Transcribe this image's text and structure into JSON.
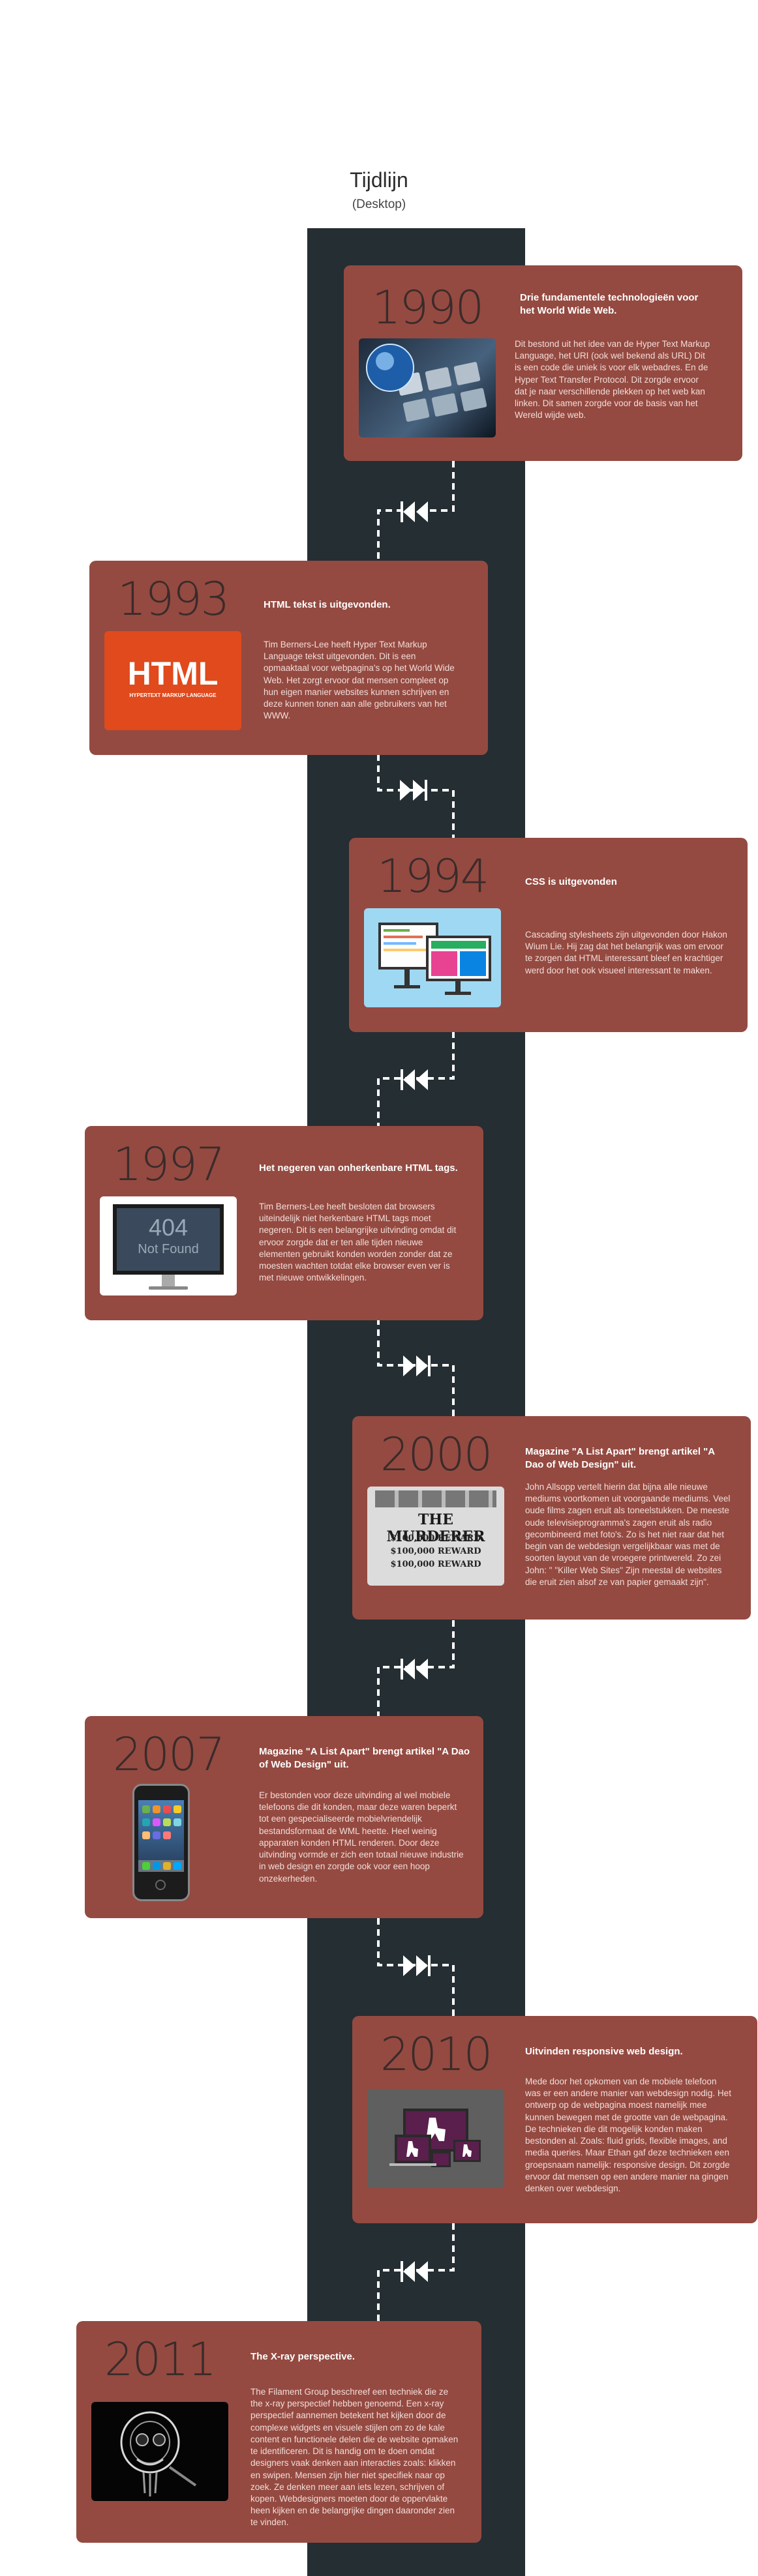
{
  "header": {
    "title": "Tijdlijn",
    "subtitle": "(Desktop)"
  },
  "entries": [
    {
      "year": "1990",
      "title": "Drie fundamentele technologieën voor het World Wide Web.",
      "text": "Dit bestond uit het idee van de Hyper Text Markup Language, het URI (ook wel bekend als URL) Dit is een code die uniek is voor elk webadres. En de Hyper Text Transfer Protocol. Dit zorgde ervoor dat je naar verschillende plekken op het web kan linken. Dit samen zorgde voor de basis van het Wereld wijde web.",
      "image": "keyboard-globe-image"
    },
    {
      "year": "1993",
      "title": "HTML tekst is uitgevonden.",
      "text": "Tim Berners-Lee heeft Hyper Text Markup Language tekst uitgevonden. Dit is een opmaaktaal voor webpagina's op het World Wide Web. Het zorgt ervoor dat mensen compleet op hun eigen manier websites kunnen schrijven en deze kunnen tonen aan alle gebruikers van het WWW.",
      "image_label": "HTML",
      "image_sublabel": "HYPERTEXT MARKUP LANGUAGE"
    },
    {
      "year": "1994",
      "title": "CSS is uitgevonden",
      "text": "Cascading stylesheets zijn uitgevonden door Hakon Wium Lie. Hij zag dat het belangrijk was om ervoor te zorgen dat HTML interessant bleef en krachtiger werd door het ook visueel interessant te maken.",
      "image": "css-monitors-image"
    },
    {
      "year": "1997",
      "title": "Het negeren van onherkenbare HTML tags.",
      "text": "Tim Berners-Lee heeft besloten dat browsers uiteindelijk niet herkenbare HTML tags moet negeren. Dit is een belangrijke uitvinding omdat dit ervoor zorgde dat er ten alle tijden nieuwe elementen gebruikt konden worden zonder dat ze moesten wachten totdat elke browser even ver is met nieuwe ontwikkelingen.",
      "image_label": "404",
      "image_sublabel": "Not Found"
    },
    {
      "year": "2000",
      "title": "Magazine \"A List Apart\" brengt artikel \"A Dao of Web Design\" uit.",
      "text": "John Allsopp vertelt hierin dat bijna alle nieuwe mediums voortkomen uit voorgaande mediums. Veel oude films zagen eruit als toneelstukken. De meeste oude televisieprogramma's zagen eruit als radio gecombineerd met foto's. Zo is het niet raar dat het begin van de webdesign vergelijkbaar was met de soorten layout van de vroegere printwereld. Zo zei John: \" \"Killer Web Sites\" Zijn meestal de websites die eruit zien alsof ze van papier gemaakt zijn\".",
      "image_label": "THE MURDERER",
      "image_sublabel": "$100,000 REWARD"
    },
    {
      "year": "2007",
      "title": "Magazine \"A List Apart\" brengt artikel \"A Dao of Web Design\" uit.",
      "text": "Er bestonden voor deze uitvinding al wel mobiele telefoons die dit konden, maar deze waren beperkt tot een gespecialiseerde mobielvriendelijk bestandsformaat de WML heette. Heel weinig apparaten konden HTML renderen. Door deze uitvinding vormde er zich een totaal nieuwe industrie in web design en zorgde ook voor een hoop onzekerheden.",
      "image": "iphone-image"
    },
    {
      "year": "2010",
      "title": "Uitvinden responsive web design.",
      "text": "Mede door het opkomen van de mobiele telefoon was er een andere manier van webdesign nodig. Het ontwerp op de webpagina moest namelijk mee kunnen bewegen met de grootte van de webpagina. De technieken die dit mogelijk konden maken bestonden al. Zoals: fluid grids, flexible images, and media queries. Maar Ethan gaf deze technieken een groepsnaam namelijk: responsive design. Dit zorgde ervoor dat mensen op een andere manier na gingen denken over webdesign.",
      "image": "responsive-devices-image"
    },
    {
      "year": "2011",
      "title": "The X-ray perspective.",
      "text": "The Filament Group beschreef een techniek die ze the x-ray perspectief hebben genoemd. Een x-ray perspectief aannemen betekent het kijken door de complexe widgets en visuele stijlen om zo de kale content en functionele delen die de website opmaken te identificeren. Dit is handig om te doen omdat designers vaak denken aan interacties zoals: klikken en swipen. Mensen zijn hier niet specifiek naar op zoek. Ze denken meer aan iets lezen, schrijven of kopen. Webdesigners moeten door de oppervlakte heen kijken en de belangrijke dingen daaronder zien te vinden.",
      "image": "xray-skull-image"
    }
  ],
  "colors": {
    "card": "#944a41",
    "spine": "#242e33",
    "year": "#3b2b2a"
  }
}
